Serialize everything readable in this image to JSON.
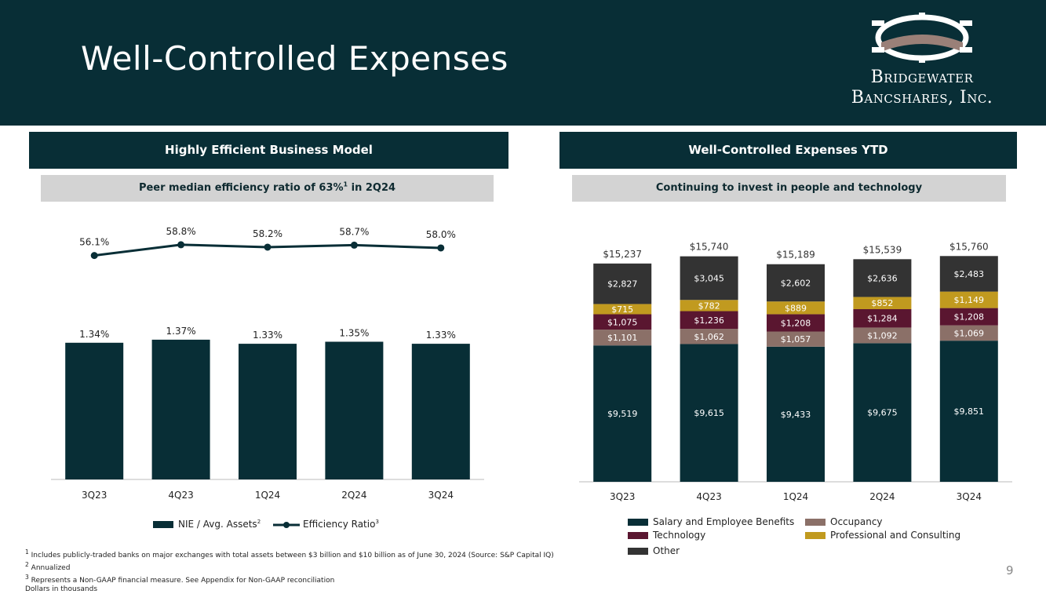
{
  "header": {
    "title": "Well-Controlled Expenses",
    "logo_line1": "Bridgewater",
    "logo_line2": "Bancshares, Inc."
  },
  "left_panel": {
    "header": "Highly Efficient Business Model",
    "subheader": "Peer median efficiency ratio of 63%",
    "subheader_sup": "1",
    "subheader_suffix": " in 2Q24"
  },
  "right_panel": {
    "header": "Well-Controlled Expenses YTD",
    "subheader": "Continuing to invest in people and technology"
  },
  "chart_data": [
    {
      "type": "bar",
      "categories": [
        "3Q23",
        "4Q23",
        "1Q24",
        "2Q24",
        "3Q24"
      ],
      "series": [
        {
          "name": "NIE / Avg. Assets",
          "name_sup": "2",
          "kind": "bar",
          "values": [
            1.34,
            1.37,
            1.33,
            1.35,
            1.33
          ],
          "labels": [
            "1.34%",
            "1.37%",
            "1.33%",
            "1.35%",
            "1.33%"
          ],
          "color": "#082e36"
        },
        {
          "name": "Efficiency Ratio",
          "name_sup": "3",
          "kind": "line",
          "values": [
            56.1,
            58.8,
            58.2,
            58.7,
            58.0
          ],
          "labels": [
            "56.1%",
            "58.8%",
            "58.2%",
            "58.7%",
            "58.0%"
          ],
          "color": "#082e36"
        }
      ],
      "bar_ylim": [
        0,
        2.7
      ],
      "line_ylim": [
        0,
        69
      ],
      "legend_position": "bottom"
    },
    {
      "type": "bar",
      "stacked": true,
      "categories": [
        "3Q23",
        "4Q23",
        "1Q24",
        "2Q24",
        "3Q24"
      ],
      "series": [
        {
          "name": "Salary and Employee Benefits",
          "values": [
            9519,
            9615,
            9433,
            9675,
            9851
          ],
          "labels": [
            "$9,519",
            "$9,615",
            "$9,433",
            "$9,675",
            "$9,851"
          ],
          "color": "#082e36"
        },
        {
          "name": "Occupancy",
          "values": [
            1101,
            1062,
            1057,
            1092,
            1069
          ],
          "labels": [
            "$1,101",
            "$1,062",
            "$1,057",
            "$1,092",
            "$1,069"
          ],
          "color": "#8b7068"
        },
        {
          "name": "Technology",
          "values": [
            1075,
            1236,
            1208,
            1284,
            1208
          ],
          "labels": [
            "$1,075",
            "$1,236",
            "$1,208",
            "$1,284",
            "$1,208"
          ],
          "color": "#5a1630"
        },
        {
          "name": "Professional and Consulting",
          "values": [
            715,
            782,
            889,
            852,
            1149
          ],
          "labels": [
            "$715",
            "$782",
            "$889",
            "$852",
            "$1,149"
          ],
          "color": "#c19a1f"
        },
        {
          "name": "Other",
          "values": [
            2827,
            3045,
            2602,
            2636,
            2483
          ],
          "labels": [
            "$2,827",
            "$3,045",
            "$2,602",
            "$2,636",
            "$2,483"
          ],
          "color": "#333333"
        }
      ],
      "totals": [
        15237,
        15740,
        15189,
        15539,
        15760
      ],
      "total_labels": [
        "$15,237",
        "$15,740",
        "$15,189",
        "$15,539",
        "$15,760"
      ],
      "ylim": [
        0,
        17200
      ],
      "legend_position": "bottom"
    }
  ],
  "footnotes": [
    {
      "sup": "1",
      "text": "Includes publicly-traded banks on major exchanges with total assets between $3 billion and $10 billion as of June 30, 2024 (Source: S&P Capital IQ)"
    },
    {
      "sup": "2",
      "text": "Annualized"
    },
    {
      "sup": "3",
      "text": "Represents a Non-GAAP financial measure. See Appendix for Non-GAAP reconciliation"
    },
    {
      "sup": "",
      "text": "Dollars in thousands"
    }
  ],
  "page_number": "9"
}
